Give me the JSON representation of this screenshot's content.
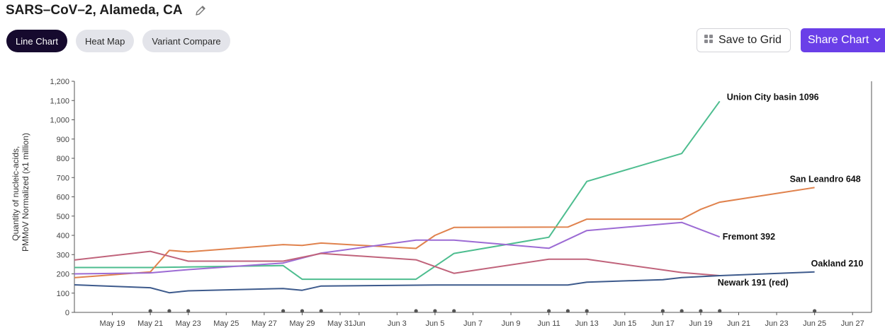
{
  "header": {
    "title": "SARS–CoV–2, Alameda, CA",
    "tabs": [
      {
        "label": "Line Chart",
        "active": true
      },
      {
        "label": "Heat Map",
        "active": false
      },
      {
        "label": "Variant Compare",
        "active": false
      }
    ],
    "save_label": "Save to Grid",
    "share_label": "Share Chart"
  },
  "colors": {
    "accent": "#6a3fe8",
    "active_tab": "#160a2e",
    "tab_bg": "#e3e4ea"
  },
  "icons": {
    "edit": "pencil-icon",
    "save": "grid-icon",
    "share": "chevron-down-icon"
  },
  "chart_data": {
    "type": "line",
    "title": "",
    "xlabel": "",
    "ylabel": "Quantity of nucleic-acids, PMMoV Normalized (x1 million)",
    "ylim": [
      0,
      1200
    ],
    "yticks": [
      0,
      100,
      200,
      300,
      400,
      500,
      600,
      700,
      800,
      900,
      1000,
      1100,
      1200
    ],
    "ytick_labels": [
      "0",
      "100",
      "200",
      "300",
      "400",
      "500",
      "600",
      "700",
      "800",
      "900",
      "1,000",
      "1,100",
      "1,200"
    ],
    "xlim": [
      "2022-05-17",
      "2022-06-28"
    ],
    "xticks": [
      {
        "date": "2022-05-19",
        "label": "May 19"
      },
      {
        "date": "2022-05-21",
        "label": "May 21"
      },
      {
        "date": "2022-05-23",
        "label": "May 23"
      },
      {
        "date": "2022-05-25",
        "label": "May 25"
      },
      {
        "date": "2022-05-27",
        "label": "May 27"
      },
      {
        "date": "2022-05-29",
        "label": "May 29"
      },
      {
        "date": "2022-05-31",
        "label": "May 31"
      },
      {
        "date": "2022-06-01",
        "label": "Jun"
      },
      {
        "date": "2022-06-03",
        "label": "Jun 3"
      },
      {
        "date": "2022-06-05",
        "label": "Jun 5"
      },
      {
        "date": "2022-06-07",
        "label": "Jun 7"
      },
      {
        "date": "2022-06-09",
        "label": "Jun 9"
      },
      {
        "date": "2022-06-11",
        "label": "Jun 11"
      },
      {
        "date": "2022-06-13",
        "label": "Jun 13"
      },
      {
        "date": "2022-06-15",
        "label": "Jun 15"
      },
      {
        "date": "2022-06-17",
        "label": "Jun 17"
      },
      {
        "date": "2022-06-19",
        "label": "Jun 19"
      },
      {
        "date": "2022-06-21",
        "label": "Jun 21"
      },
      {
        "date": "2022-06-23",
        "label": "Jun 23"
      },
      {
        "date": "2022-06-25",
        "label": "Jun 25"
      },
      {
        "date": "2022-06-27",
        "label": "Jun 27"
      }
    ],
    "sample_dates": [
      "2022-05-21",
      "2022-05-22",
      "2022-05-23",
      "2022-05-28",
      "2022-05-29",
      "2022-05-30",
      "2022-06-04",
      "2022-06-05",
      "2022-06-06",
      "2022-06-11",
      "2022-06-12",
      "2022-06-13",
      "2022-06-17",
      "2022-06-18",
      "2022-06-19",
      "2022-06-20",
      "2022-06-25"
    ],
    "grid": false,
    "series": [
      {
        "name": "Union City basin",
        "end_label": "Union City basin 1096",
        "color": "#4dbd8f",
        "x": [
          "2022-05-17",
          "2022-05-21",
          "2022-05-28",
          "2022-05-29",
          "2022-06-04",
          "2022-06-06",
          "2022-06-11",
          "2022-06-13",
          "2022-06-18",
          "2022-06-20"
        ],
        "y": [
          233,
          233,
          243,
          172,
          172,
          306,
          390,
          680,
          825,
          1096
        ]
      },
      {
        "name": "San Leandro",
        "end_label": "San Leandro 648",
        "color": "#e0824d",
        "x": [
          "2022-05-17",
          "2022-05-21",
          "2022-05-22",
          "2022-05-23",
          "2022-05-28",
          "2022-05-29",
          "2022-05-30",
          "2022-06-04",
          "2022-06-05",
          "2022-06-06",
          "2022-06-12",
          "2022-06-13",
          "2022-06-18",
          "2022-06-19",
          "2022-06-20",
          "2022-06-25"
        ],
        "y": [
          180,
          210,
          322,
          314,
          352,
          348,
          360,
          332,
          400,
          441,
          443,
          484,
          484,
          535,
          572,
          648
        ]
      },
      {
        "name": "Fremont",
        "end_label": "Fremont 392",
        "color": "#9c6bd4",
        "x": [
          "2022-05-17",
          "2022-05-21",
          "2022-05-23",
          "2022-05-28",
          "2022-05-30",
          "2022-06-04",
          "2022-06-06",
          "2022-06-11",
          "2022-06-13",
          "2022-06-18",
          "2022-06-20"
        ],
        "y": [
          200,
          205,
          222,
          256,
          308,
          375,
          375,
          333,
          425,
          467,
          392
        ]
      },
      {
        "name": "Newark",
        "end_label": "Newark 191 (red)",
        "color": "#c0637b",
        "x": [
          "2022-05-17",
          "2022-05-21",
          "2022-05-23",
          "2022-05-28",
          "2022-05-30",
          "2022-06-04",
          "2022-06-06",
          "2022-06-11",
          "2022-06-13",
          "2022-06-18",
          "2022-06-20"
        ],
        "y": [
          272,
          317,
          266,
          266,
          306,
          273,
          203,
          276,
          276,
          207,
          191
        ]
      },
      {
        "name": "Oakland",
        "end_label": "Oakland 210",
        "color": "#3d5a8c",
        "x": [
          "2022-05-17",
          "2022-05-21",
          "2022-05-22",
          "2022-05-23",
          "2022-05-28",
          "2022-05-29",
          "2022-05-30",
          "2022-06-05",
          "2022-06-12",
          "2022-06-13",
          "2022-06-17",
          "2022-06-18",
          "2022-06-20",
          "2022-06-25"
        ],
        "y": [
          143,
          128,
          102,
          112,
          124,
          115,
          137,
          142,
          142,
          157,
          170,
          181,
          191,
          210
        ]
      }
    ]
  }
}
